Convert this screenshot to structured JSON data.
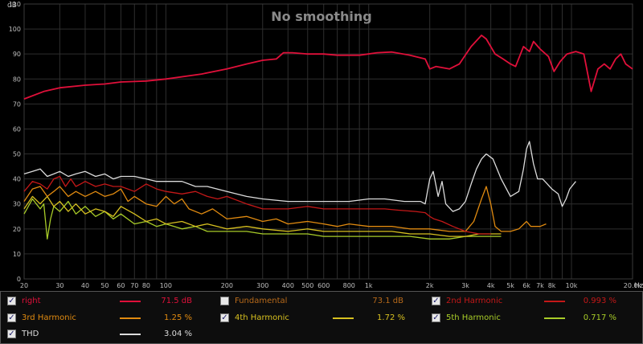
{
  "chart_data": {
    "type": "line",
    "title": "No smoothing",
    "ylabel": "dB",
    "xlabel": "Hz",
    "xscale": "log",
    "xlim": [
      20,
      20000
    ],
    "ylim": [
      0,
      110
    ],
    "grid": true,
    "y_ticks": [
      "0",
      "10",
      "20",
      "30",
      "40",
      "50",
      "60",
      "70",
      "80",
      "90",
      "100",
      "110"
    ],
    "x_ticks": [
      {
        "v": 20,
        "label": "20"
      },
      {
        "v": 30,
        "label": "30"
      },
      {
        "v": 40,
        "label": "40"
      },
      {
        "v": 50,
        "label": "50"
      },
      {
        "v": 60,
        "label": "60"
      },
      {
        "v": 70,
        "label": "70"
      },
      {
        "v": 80,
        "label": "80"
      },
      {
        "v": 100,
        "label": "100"
      },
      {
        "v": 200,
        "label": "200"
      },
      {
        "v": 300,
        "label": "300"
      },
      {
        "v": 400,
        "label": "400"
      },
      {
        "v": 500,
        "label": "500"
      },
      {
        "v": 600,
        "label": "600"
      },
      {
        "v": 800,
        "label": "800"
      },
      {
        "v": 1000,
        "label": "1k"
      },
      {
        "v": 2000,
        "label": "2k"
      },
      {
        "v": 3000,
        "label": "3k"
      },
      {
        "v": 4000,
        "label": "4k"
      },
      {
        "v": 5000,
        "label": "5k"
      },
      {
        "v": 6000,
        "label": "6k"
      },
      {
        "v": 7000,
        "label": "7k"
      },
      {
        "v": 8000,
        "label": "8k"
      },
      {
        "v": 10000,
        "label": "10k"
      },
      {
        "v": 20000,
        "label": "20.0k"
      }
    ],
    "series": [
      {
        "name": "right",
        "color": "#e0103a",
        "points": [
          [
            20,
            72
          ],
          [
            25,
            75
          ],
          [
            30,
            76.5
          ],
          [
            40,
            77.5
          ],
          [
            50,
            78
          ],
          [
            60,
            78.8
          ],
          [
            70,
            79
          ],
          [
            80,
            79.2
          ],
          [
            100,
            80
          ],
          [
            150,
            82
          ],
          [
            200,
            84
          ],
          [
            250,
            86
          ],
          [
            300,
            87.5
          ],
          [
            350,
            88
          ],
          [
            380,
            90.5
          ],
          [
            420,
            90.5
          ],
          [
            500,
            90
          ],
          [
            600,
            90
          ],
          [
            700,
            89.5
          ],
          [
            900,
            89.5
          ],
          [
            1100,
            90.5
          ],
          [
            1300,
            90.8
          ],
          [
            1600,
            89.5
          ],
          [
            1900,
            88
          ],
          [
            2000,
            84
          ],
          [
            2150,
            85
          ],
          [
            2500,
            84
          ],
          [
            2800,
            86
          ],
          [
            3200,
            93
          ],
          [
            3600,
            97.5
          ],
          [
            3800,
            96
          ],
          [
            4200,
            90
          ],
          [
            4600,
            88
          ],
          [
            5000,
            86
          ],
          [
            5300,
            85
          ],
          [
            5800,
            93
          ],
          [
            6200,
            91
          ],
          [
            6500,
            95
          ],
          [
            7000,
            92
          ],
          [
            7700,
            89
          ],
          [
            8200,
            83
          ],
          [
            8800,
            87
          ],
          [
            9500,
            90
          ],
          [
            10500,
            91
          ],
          [
            11500,
            90
          ],
          [
            12500,
            75
          ],
          [
            13500,
            84
          ],
          [
            14500,
            86
          ],
          [
            15500,
            84
          ],
          [
            16500,
            88
          ],
          [
            17500,
            90
          ],
          [
            18500,
            86
          ],
          [
            20000,
            84
          ]
        ]
      },
      {
        "name": "2nd Harmonic",
        "color": "#c41818",
        "points": [
          [
            20,
            35
          ],
          [
            22,
            39
          ],
          [
            24,
            38
          ],
          [
            26,
            36
          ],
          [
            28,
            40
          ],
          [
            30,
            41
          ],
          [
            32,
            37
          ],
          [
            34,
            40
          ],
          [
            36,
            37
          ],
          [
            38,
            38
          ],
          [
            40,
            39
          ],
          [
            45,
            37
          ],
          [
            50,
            38
          ],
          [
            55,
            37
          ],
          [
            60,
            37
          ],
          [
            70,
            35
          ],
          [
            80,
            38
          ],
          [
            90,
            36
          ],
          [
            100,
            35
          ],
          [
            120,
            34
          ],
          [
            140,
            35
          ],
          [
            160,
            33
          ],
          [
            180,
            32
          ],
          [
            200,
            33
          ],
          [
            250,
            30
          ],
          [
            300,
            28
          ],
          [
            400,
            28
          ],
          [
            500,
            29
          ],
          [
            600,
            28
          ],
          [
            800,
            28
          ],
          [
            1000,
            28
          ],
          [
            1200,
            28
          ],
          [
            1400,
            27.5
          ],
          [
            1700,
            27
          ],
          [
            1900,
            26.5
          ],
          [
            2000,
            25
          ],
          [
            2100,
            24
          ],
          [
            2300,
            23
          ],
          [
            2600,
            21
          ],
          [
            3000,
            19
          ],
          [
            3500,
            18
          ],
          [
            4000,
            18
          ]
        ]
      },
      {
        "name": "3rd Harmonic",
        "color": "#e08a10",
        "points": [
          [
            20,
            31
          ],
          [
            22,
            36
          ],
          [
            24,
            37
          ],
          [
            26,
            33
          ],
          [
            28,
            35
          ],
          [
            30,
            37
          ],
          [
            33,
            33
          ],
          [
            36,
            35
          ],
          [
            40,
            33
          ],
          [
            45,
            35
          ],
          [
            50,
            33
          ],
          [
            55,
            34
          ],
          [
            60,
            36
          ],
          [
            65,
            31
          ],
          [
            70,
            33
          ],
          [
            80,
            30
          ],
          [
            90,
            29
          ],
          [
            100,
            33
          ],
          [
            110,
            30
          ],
          [
            120,
            32
          ],
          [
            130,
            28
          ],
          [
            150,
            26
          ],
          [
            170,
            28
          ],
          [
            200,
            24
          ],
          [
            250,
            25
          ],
          [
            300,
            23
          ],
          [
            350,
            24
          ],
          [
            400,
            22
          ],
          [
            500,
            23
          ],
          [
            600,
            22
          ],
          [
            700,
            21
          ],
          [
            800,
            22
          ],
          [
            1000,
            21
          ],
          [
            1300,
            21
          ],
          [
            1600,
            20
          ],
          [
            2000,
            20
          ],
          [
            2500,
            19
          ],
          [
            3000,
            19
          ],
          [
            3300,
            23
          ],
          [
            3600,
            32
          ],
          [
            3800,
            37
          ],
          [
            4000,
            30
          ],
          [
            4200,
            21
          ],
          [
            4500,
            19
          ],
          [
            5000,
            19
          ],
          [
            5500,
            20
          ],
          [
            6000,
            23
          ],
          [
            6300,
            21
          ],
          [
            7000,
            21
          ],
          [
            7500,
            22
          ]
        ]
      },
      {
        "name": "4th Harmonic",
        "color": "#d7c020",
        "points": [
          [
            20,
            28
          ],
          [
            22,
            33
          ],
          [
            24,
            30
          ],
          [
            26,
            33
          ],
          [
            28,
            29
          ],
          [
            30,
            31
          ],
          [
            33,
            27
          ],
          [
            36,
            30
          ],
          [
            40,
            26
          ],
          [
            45,
            28
          ],
          [
            50,
            27
          ],
          [
            55,
            25
          ],
          [
            60,
            29
          ],
          [
            70,
            26
          ],
          [
            80,
            23
          ],
          [
            90,
            24
          ],
          [
            100,
            22
          ],
          [
            120,
            23
          ],
          [
            140,
            21
          ],
          [
            160,
            22
          ],
          [
            200,
            20
          ],
          [
            250,
            21
          ],
          [
            300,
            20
          ],
          [
            400,
            19
          ],
          [
            500,
            20
          ],
          [
            600,
            19
          ],
          [
            800,
            19
          ],
          [
            1000,
            19
          ],
          [
            1300,
            19
          ],
          [
            1600,
            18
          ],
          [
            2000,
            18
          ],
          [
            2500,
            17
          ],
          [
            3000,
            17
          ],
          [
            3500,
            18
          ],
          [
            4000,
            18
          ],
          [
            4500,
            18
          ]
        ]
      },
      {
        "name": "5th Harmonic",
        "color": "#a8cc28",
        "points": [
          [
            20,
            26
          ],
          [
            22,
            32
          ],
          [
            24,
            28
          ],
          [
            25,
            30
          ],
          [
            26,
            16
          ],
          [
            27,
            24
          ],
          [
            28,
            29
          ],
          [
            30,
            27
          ],
          [
            33,
            31
          ],
          [
            36,
            26
          ],
          [
            40,
            29
          ],
          [
            45,
            25
          ],
          [
            50,
            27
          ],
          [
            55,
            24
          ],
          [
            60,
            26
          ],
          [
            70,
            22
          ],
          [
            80,
            23
          ],
          [
            90,
            21
          ],
          [
            100,
            22
          ],
          [
            120,
            20
          ],
          [
            140,
            21
          ],
          [
            160,
            19
          ],
          [
            200,
            19
          ],
          [
            250,
            19
          ],
          [
            300,
            18
          ],
          [
            400,
            18
          ],
          [
            500,
            18
          ],
          [
            600,
            17
          ],
          [
            800,
            17
          ],
          [
            1000,
            17
          ],
          [
            1300,
            17
          ],
          [
            1600,
            17
          ],
          [
            2000,
            16
          ],
          [
            2500,
            16
          ],
          [
            3000,
            17
          ],
          [
            3500,
            17
          ],
          [
            4000,
            17
          ],
          [
            4500,
            17
          ]
        ]
      },
      {
        "name": "THD",
        "color": "#dcdcdc",
        "points": [
          [
            20,
            42
          ],
          [
            22,
            43
          ],
          [
            24,
            44
          ],
          [
            26,
            41
          ],
          [
            28,
            42
          ],
          [
            30,
            43
          ],
          [
            33,
            41
          ],
          [
            36,
            42
          ],
          [
            40,
            43
          ],
          [
            45,
            41
          ],
          [
            50,
            42
          ],
          [
            55,
            40
          ],
          [
            60,
            41
          ],
          [
            70,
            41
          ],
          [
            80,
            40
          ],
          [
            90,
            39
          ],
          [
            100,
            39
          ],
          [
            120,
            39
          ],
          [
            140,
            37
          ],
          [
            160,
            37
          ],
          [
            200,
            35
          ],
          [
            250,
            33
          ],
          [
            300,
            32
          ],
          [
            400,
            31
          ],
          [
            500,
            31
          ],
          [
            600,
            31
          ],
          [
            800,
            31
          ],
          [
            1000,
            32
          ],
          [
            1200,
            32
          ],
          [
            1500,
            31
          ],
          [
            1800,
            31
          ],
          [
            1900,
            30
          ],
          [
            2000,
            40
          ],
          [
            2080,
            43
          ],
          [
            2200,
            33
          ],
          [
            2300,
            39
          ],
          [
            2400,
            30
          ],
          [
            2600,
            27
          ],
          [
            2800,
            28
          ],
          [
            3000,
            31
          ],
          [
            3200,
            38
          ],
          [
            3400,
            44
          ],
          [
            3600,
            48
          ],
          [
            3800,
            50
          ],
          [
            4100,
            48
          ],
          [
            4500,
            40
          ],
          [
            5000,
            33
          ],
          [
            5500,
            35
          ],
          [
            5800,
            44
          ],
          [
            6000,
            52
          ],
          [
            6200,
            55
          ],
          [
            6500,
            46
          ],
          [
            6800,
            40
          ],
          [
            7200,
            40
          ],
          [
            7600,
            38
          ],
          [
            8000,
            36
          ],
          [
            8600,
            34
          ],
          [
            9000,
            29
          ],
          [
            9400,
            32
          ],
          [
            9800,
            36
          ],
          [
            10500,
            39
          ]
        ]
      }
    ]
  },
  "legend": [
    {
      "key": "right",
      "label": "right",
      "checked": true,
      "value": "71.5 dB",
      "color": "#e0103a"
    },
    {
      "key": "fundamental",
      "label": "Fundamental",
      "checked": false,
      "value": "73.1 dB",
      "color": ""
    },
    {
      "key": "h2",
      "label": "2nd Harmonic",
      "checked": true,
      "value": "0.993 %",
      "color": "#c41818"
    },
    {
      "key": "h3",
      "label": "3rd Harmonic",
      "checked": true,
      "value": "1.25 %",
      "color": "#e08a10"
    },
    {
      "key": "h4",
      "label": "4th Harmonic",
      "checked": true,
      "value": "1.72 %",
      "color": "#d7c020"
    },
    {
      "key": "h5",
      "label": "5th Harmonic",
      "checked": true,
      "value": "0.717 %",
      "color": "#a8cc28"
    },
    {
      "key": "thd",
      "label": "THD",
      "checked": true,
      "value": "3.04 %",
      "color": "#dcdcdc"
    }
  ],
  "label_colors": {
    "right": "#e0103a",
    "fundamental": "#b86a1a",
    "h2": "#c41818",
    "h3": "#e08a10",
    "h4": "#d7c020",
    "h5": "#a8cc28",
    "thd": "#dcdcdc"
  }
}
